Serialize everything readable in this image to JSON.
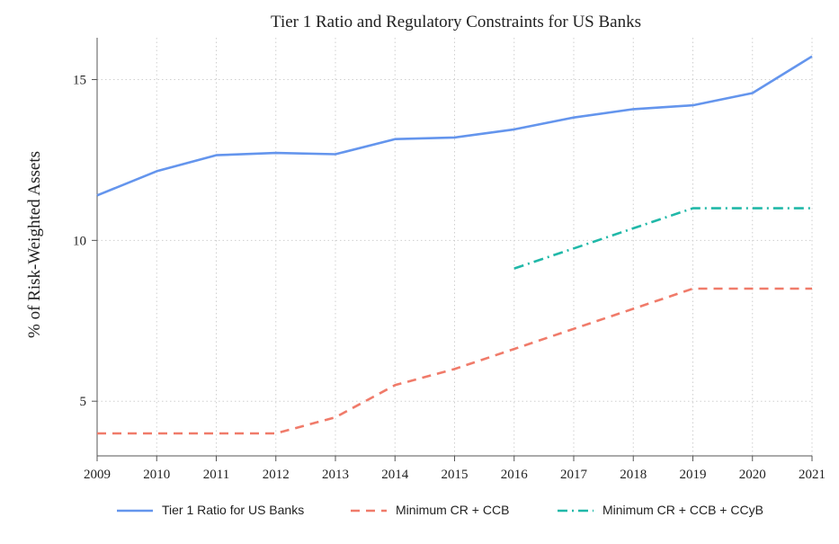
{
  "chart_data": {
    "type": "line",
    "title": "Tier 1 Ratio and Regulatory Constraints for US Banks",
    "xlabel": "",
    "ylabel": "% of Risk-Weighted Assets",
    "x": [
      2009,
      2010,
      2011,
      2012,
      2013,
      2014,
      2015,
      2016,
      2017,
      2018,
      2019,
      2020,
      2021
    ],
    "x_ticks": [
      "2009",
      "2010",
      "2011",
      "2012",
      "2013",
      "2014",
      "2015",
      "2016",
      "2017",
      "2018",
      "2019",
      "2020",
      "2021"
    ],
    "y_ticks": [
      5,
      10,
      15
    ],
    "y_tick_labels": [
      "5",
      "10",
      "15"
    ],
    "xlim": [
      2009,
      2021
    ],
    "ylim": [
      3.3,
      16.3
    ],
    "grid": true,
    "legend_position": "bottom",
    "series": [
      {
        "name": "Tier 1 Ratio for US Banks",
        "color": "#6495ED",
        "style": "solid",
        "x": [
          2009,
          2010,
          2011,
          2012,
          2013,
          2014,
          2015,
          2016,
          2017,
          2018,
          2019,
          2020,
          2021
        ],
        "values": [
          11.4,
          12.15,
          12.65,
          12.72,
          12.68,
          13.15,
          13.2,
          13.45,
          13.82,
          14.08,
          14.2,
          14.58,
          15.72
        ]
      },
      {
        "name": "Minimum CR + CCB",
        "color": "#F07B6A",
        "style": "dashed",
        "x": [
          2009,
          2010,
          2011,
          2012,
          2013,
          2014,
          2015,
          2016,
          2017,
          2018,
          2019,
          2020,
          2021
        ],
        "values": [
          4.0,
          4.0,
          4.0,
          4.0,
          4.5,
          5.5,
          6.0,
          6.625,
          7.25,
          7.875,
          8.5,
          8.5,
          8.5
        ]
      },
      {
        "name": "Minimum CR + CCB + CCyB",
        "color": "#20B8A8",
        "style": "dashdot",
        "x": [
          2016,
          2017,
          2018,
          2019,
          2020,
          2021
        ],
        "values": [
          9.125,
          9.75,
          10.375,
          11.0,
          11.0,
          11.0
        ]
      }
    ]
  }
}
